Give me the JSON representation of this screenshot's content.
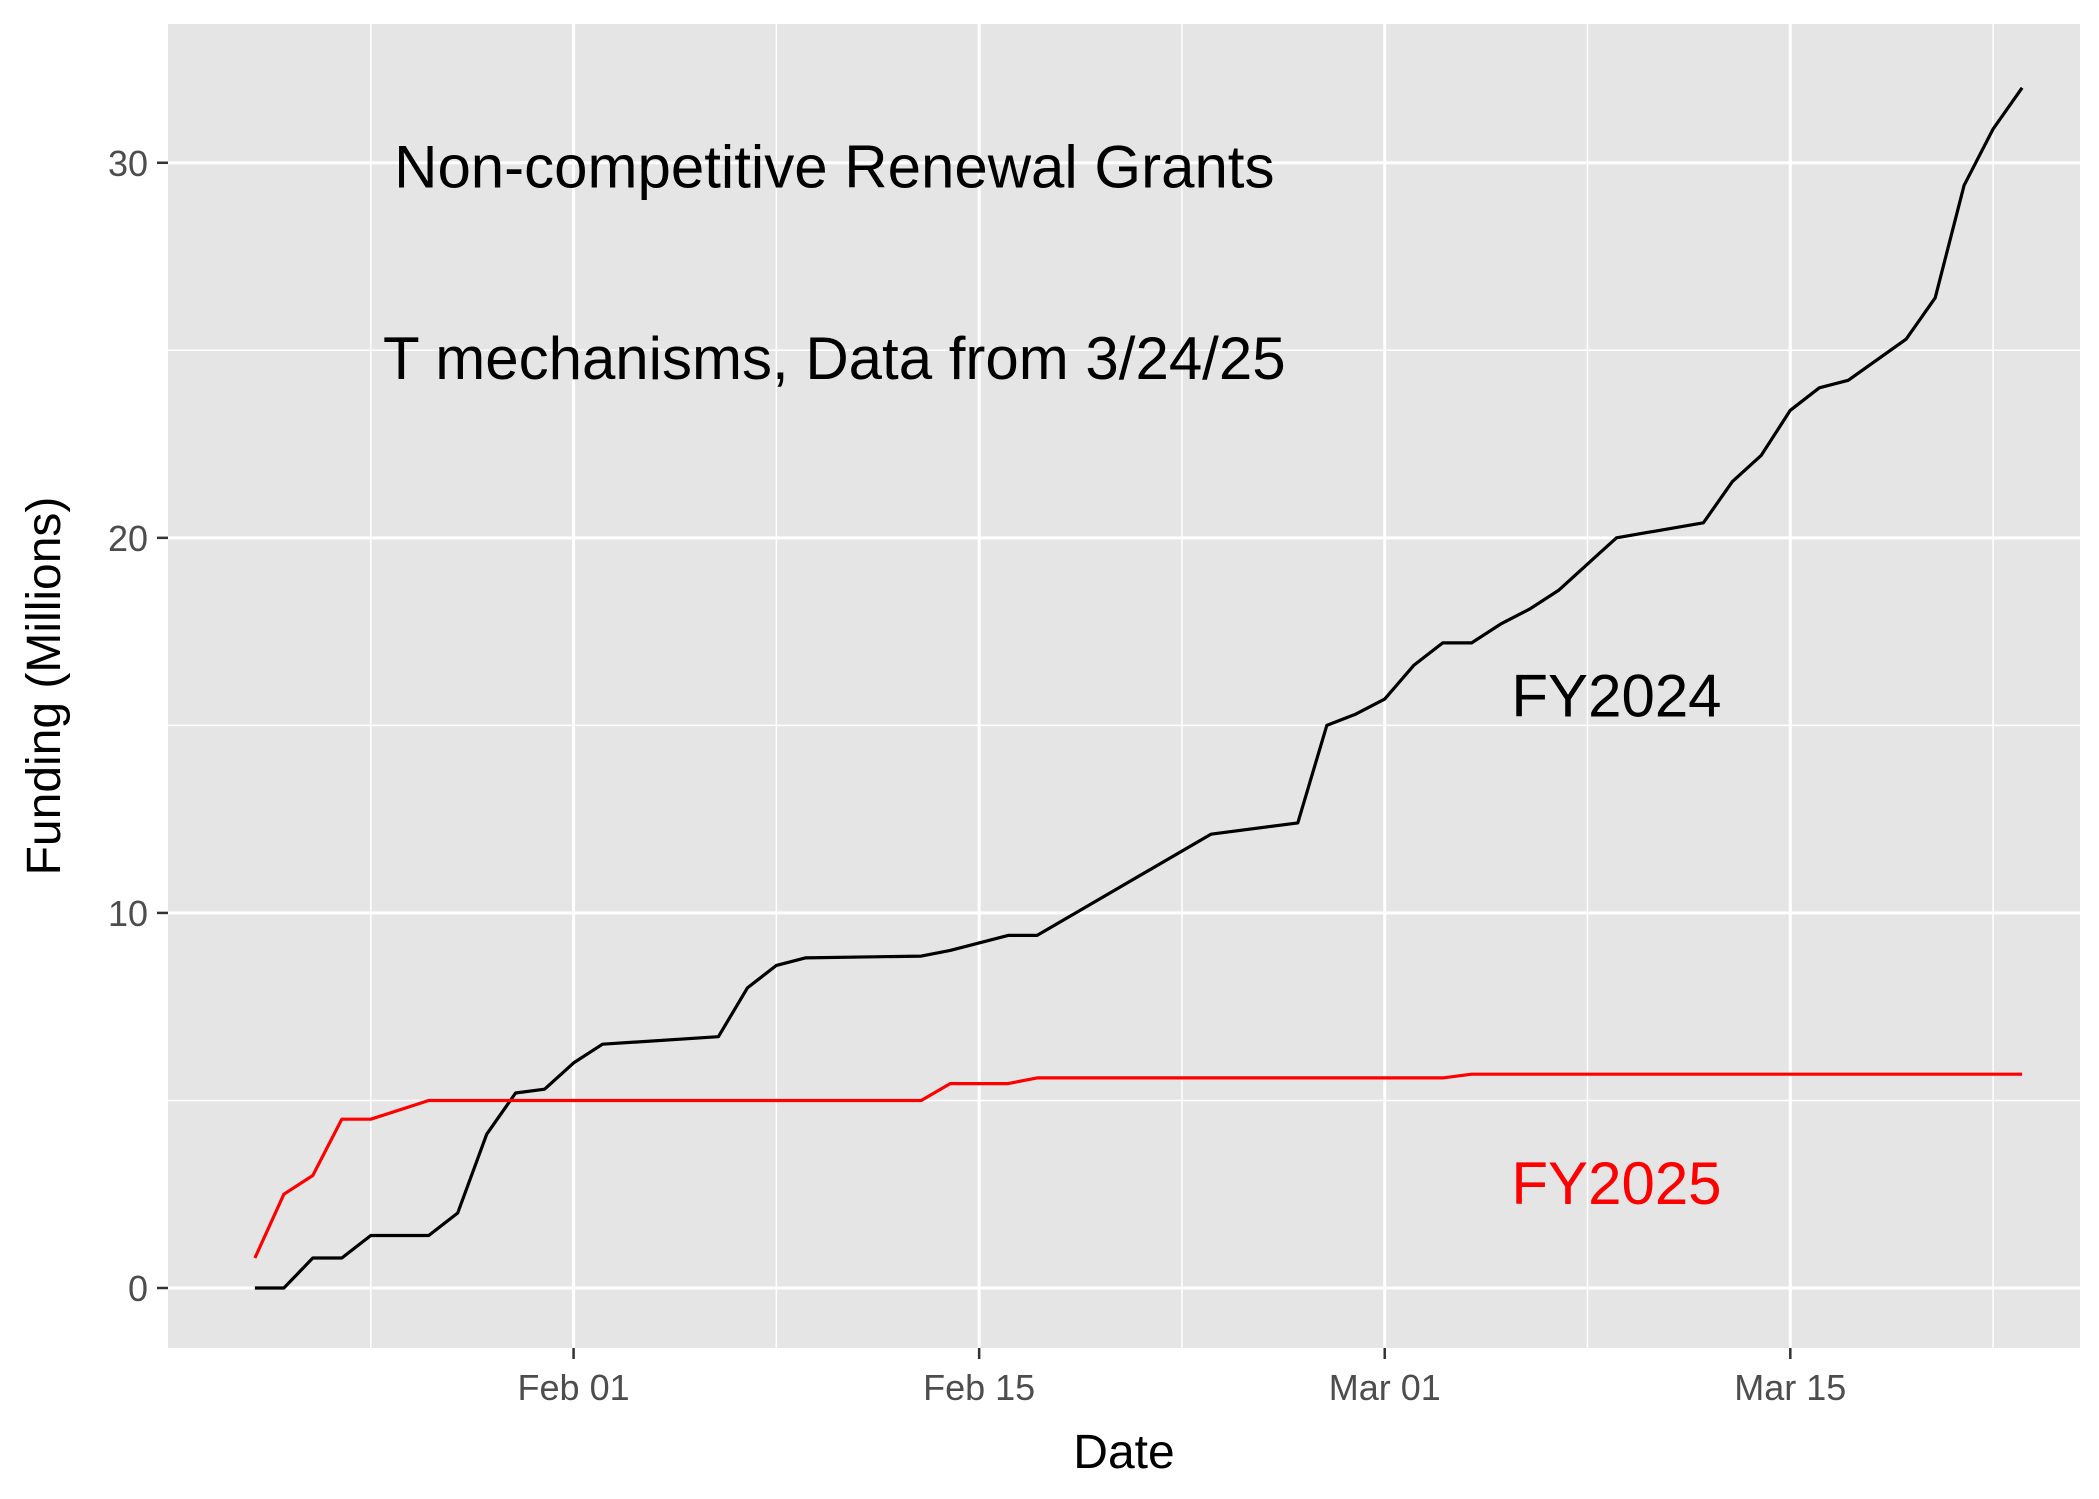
{
  "chart_data": {
    "type": "line",
    "xlabel": "Date",
    "ylabel": "Funding (Millions)",
    "x_ticks": [
      {
        "date": "2025-02-01",
        "label": "Feb 01"
      },
      {
        "date": "2025-02-15",
        "label": "Feb 15"
      },
      {
        "date": "2025-03-01",
        "label": "Mar 01"
      },
      {
        "date": "2025-03-15",
        "label": "Mar 15"
      }
    ],
    "xlim": [
      "2025-01-18",
      "2025-03-25"
    ],
    "y_ticks": [
      0,
      10,
      20,
      30
    ],
    "ylim": [
      -1.6,
      33.7
    ],
    "grid": true,
    "background": "#e5e5e5",
    "annotations": [
      {
        "text": "Non-competitive Renewal Grants",
        "x": "2025-02-10",
        "y": 29.9,
        "color": "#000000"
      },
      {
        "text": "T mechanisms, Data from 3/24/25",
        "x": "2025-02-10",
        "y": 24.8,
        "color": "#000000"
      },
      {
        "text": "FY2024",
        "x": "2025-03-09",
        "y": 15.8,
        "color": "#000000"
      },
      {
        "text": "FY2025",
        "x": "2025-03-09",
        "y": 2.8,
        "color": "#ff0000"
      }
    ],
    "series": [
      {
        "color": "#000000",
        "points": [
          [
            "2025-01-21",
            0.0
          ],
          [
            "2025-01-22",
            0.0
          ],
          [
            "2025-01-23",
            0.8
          ],
          [
            "2025-01-24",
            0.8
          ],
          [
            "2025-01-25",
            1.4
          ],
          [
            "2025-01-27",
            1.4
          ],
          [
            "2025-01-28",
            2.0
          ],
          [
            "2025-01-29",
            4.1
          ],
          [
            "2025-01-30",
            5.2
          ],
          [
            "2025-01-31",
            5.3
          ],
          [
            "2025-02-01",
            6.0
          ],
          [
            "2025-02-02",
            6.5
          ],
          [
            "2025-02-06",
            6.7
          ],
          [
            "2025-02-07",
            8.0
          ],
          [
            "2025-02-08",
            8.6
          ],
          [
            "2025-02-09",
            8.8
          ],
          [
            "2025-02-13",
            8.85
          ],
          [
            "2025-02-14",
            9.0
          ],
          [
            "2025-02-16",
            9.4
          ],
          [
            "2025-02-17",
            9.4
          ],
          [
            "2025-02-23",
            12.1
          ],
          [
            "2025-02-26",
            12.4
          ],
          [
            "2025-02-27",
            15.0
          ],
          [
            "2025-02-28",
            15.3
          ],
          [
            "2025-03-01",
            15.7
          ],
          [
            "2025-03-02",
            16.6
          ],
          [
            "2025-03-03",
            17.2
          ],
          [
            "2025-03-04",
            17.2
          ],
          [
            "2025-03-05",
            17.7
          ],
          [
            "2025-03-06",
            18.1
          ],
          [
            "2025-03-07",
            18.6
          ],
          [
            "2025-03-08",
            19.3
          ],
          [
            "2025-03-09",
            20.0
          ],
          [
            "2025-03-12",
            20.4
          ],
          [
            "2025-03-13",
            21.5
          ],
          [
            "2025-03-14",
            22.2
          ],
          [
            "2025-03-15",
            23.4
          ],
          [
            "2025-03-16",
            24.0
          ],
          [
            "2025-03-17",
            24.2
          ],
          [
            "2025-03-19",
            25.3
          ],
          [
            "2025-03-20",
            26.4
          ],
          [
            "2025-03-21",
            29.4
          ],
          [
            "2025-03-22",
            30.9
          ],
          [
            "2025-03-23",
            32.0
          ]
        ]
      },
      {
        "color": "#ff0000",
        "points": [
          [
            "2025-01-21",
            0.8
          ],
          [
            "2025-01-22",
            2.5
          ],
          [
            "2025-01-23",
            3.0
          ],
          [
            "2025-01-24",
            4.5
          ],
          [
            "2025-01-25",
            4.5
          ],
          [
            "2025-01-27",
            5.0
          ],
          [
            "2025-02-13",
            5.0
          ],
          [
            "2025-02-14",
            5.45
          ],
          [
            "2025-02-16",
            5.45
          ],
          [
            "2025-02-17",
            5.6
          ],
          [
            "2025-03-03",
            5.6
          ],
          [
            "2025-03-04",
            5.7
          ],
          [
            "2025-03-23",
            5.7
          ]
        ]
      }
    ]
  }
}
